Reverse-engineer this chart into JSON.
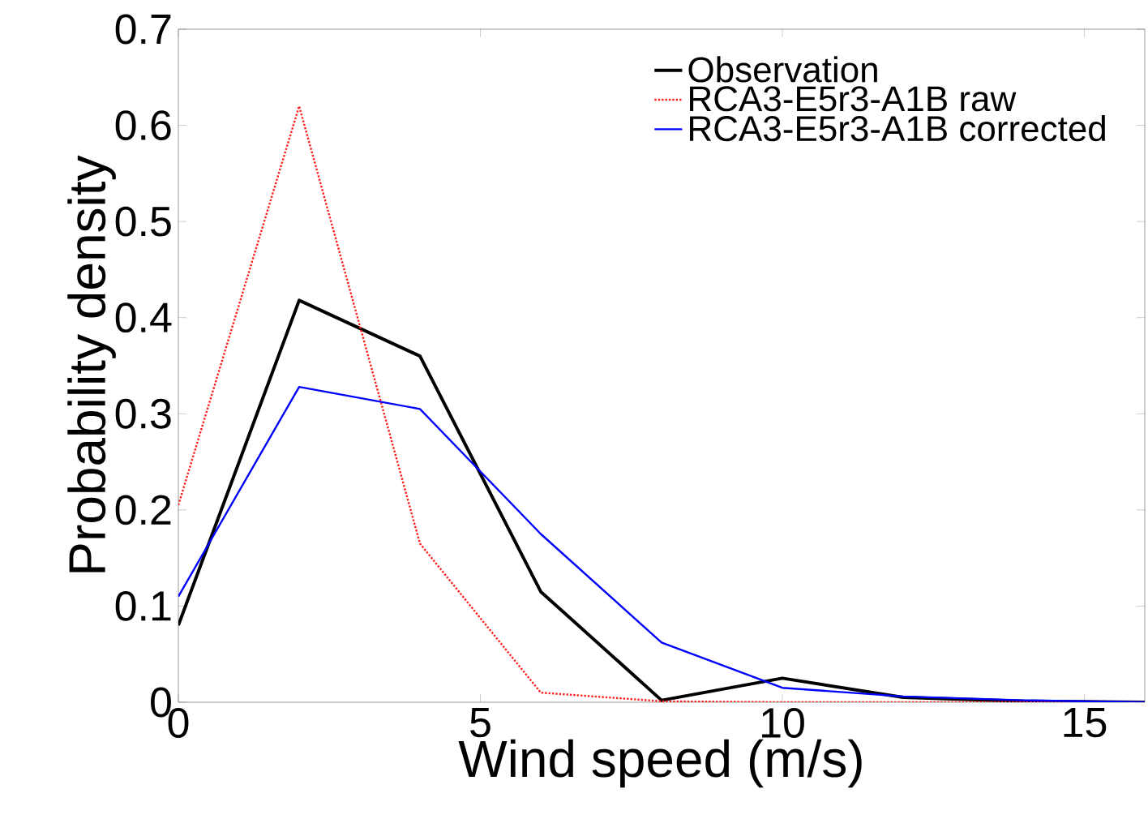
{
  "chart_data": {
    "type": "line",
    "xlabel": "Wind speed (m/s)",
    "ylabel": "Probability density",
    "x": [
      0,
      2,
      4,
      6,
      8,
      10,
      12,
      14,
      16
    ],
    "series": [
      {
        "name": "Observation",
        "color": "#000000",
        "line_style": "solid",
        "values": [
          0.08,
          0.418,
          0.36,
          0.115,
          0.002,
          0.025,
          0.005,
          0.001,
          0.0
        ]
      },
      {
        "name": "RCA3-E5r3-A1B raw",
        "color": "#ff2020",
        "line_style": "dotted",
        "values": [
          0.205,
          0.62,
          0.165,
          0.01,
          0.001,
          0.0,
          0.0,
          0.0,
          0.0
        ]
      },
      {
        "name": "RCA3-E5r3-A1B corrected",
        "color": "#0000ff",
        "line_style": "solid",
        "values": [
          0.11,
          0.328,
          0.305,
          0.175,
          0.062,
          0.015,
          0.006,
          0.002,
          0.0
        ]
      }
    ],
    "xlim": [
      0,
      16
    ],
    "ylim": [
      0,
      0.7
    ],
    "xticks": [
      0,
      5,
      10,
      15
    ],
    "yticks": [
      0,
      0.1,
      0.2,
      0.3,
      0.4,
      0.5,
      0.6,
      0.7
    ],
    "legend": "top right",
    "grid": false,
    "marker": "none"
  }
}
